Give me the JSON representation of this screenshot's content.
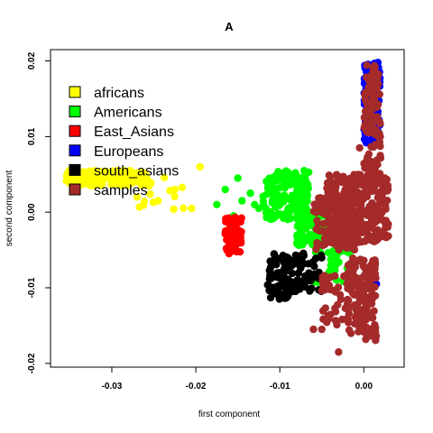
{
  "chart_data": {
    "type": "scatter",
    "title": "A",
    "xlabel": "first component",
    "ylabel": "second component",
    "xlim": [
      -0.0373,
      0.0048
    ],
    "ylim": [
      -0.0205,
      0.0215
    ],
    "x_ticks": [
      -0.03,
      -0.02,
      -0.01,
      0.0
    ],
    "x_tick_labels": [
      "-0.03",
      "-0.02",
      "-0.01",
      "0.00"
    ],
    "y_ticks": [
      -0.02,
      -0.01,
      0.0,
      0.01,
      0.02
    ],
    "y_tick_labels": [
      "-0.02",
      "-0.01",
      "0.00",
      "0.01",
      "0.02"
    ],
    "grid": false,
    "legend_position": "top-left",
    "series": [
      {
        "name": "africans",
        "color": "#FFFF00",
        "clusters": [
          {
            "x": [
              -0.0355,
              -0.0258
            ],
            "y": [
              0.0035,
              0.0055
            ],
            "n": 180
          },
          {
            "x": [
              -0.0268,
              -0.0205
            ],
            "y": [
              0.0,
              0.005
            ],
            "n": 14
          }
        ],
        "points": [
          [
            -0.0195,
            0.006
          ],
          [
            -0.0225,
            0.003
          ],
          [
            -0.0245,
            0.0015
          ],
          [
            -0.0205,
            0.0005
          ],
          [
            -0.0255,
            0.004
          ],
          [
            -0.027,
            0.002
          ]
        ]
      },
      {
        "name": "Americans",
        "color": "#00FF00",
        "clusters": [
          {
            "x": [
              -0.012,
              -0.0065
            ],
            "y": [
              -0.001,
              0.0055
            ],
            "n": 160
          },
          {
            "x": [
              -0.008,
              -0.004
            ],
            "y": [
              -0.0045,
              0.0
            ],
            "n": 90
          },
          {
            "x": [
              -0.006,
              -0.0015
            ],
            "y": [
              -0.0095,
              -0.003
            ],
            "n": 40
          }
        ],
        "points": [
          [
            -0.0125,
            0.0005
          ],
          [
            -0.0135,
            0.0025
          ],
          [
            -0.0145,
            0.0015
          ],
          [
            -0.0155,
            -0.0005
          ],
          [
            -0.0165,
            0.003
          ],
          [
            -0.015,
            0.0045
          ],
          [
            -0.013,
            0.001
          ],
          [
            -0.0175,
            0.001
          ]
        ]
      },
      {
        "name": "East_Asians",
        "color": "#FF0000",
        "clusters": [
          {
            "x": [
              -0.0165,
              -0.0145
            ],
            "y": [
              -0.0055,
              -0.0005
            ],
            "n": 70
          }
        ],
        "points": []
      },
      {
        "name": "Europeans",
        "color": "#0000FF",
        "clusters": [
          {
            "x": [
              0.0,
              0.002
            ],
            "y": [
              0.009,
              0.02
            ],
            "n": 90
          }
        ],
        "points": [
          [
            0.0015,
            -0.0095
          ]
        ]
      },
      {
        "name": "south_asians",
        "color": "#000000",
        "clusters": [
          {
            "x": [
              -0.0115,
              -0.0085
            ],
            "y": [
              -0.0115,
              -0.0055
            ],
            "n": 80
          },
          {
            "x": [
              -0.0085,
              -0.005
            ],
            "y": [
              -0.0105,
              -0.005
            ],
            "n": 60
          }
        ],
        "points": []
      },
      {
        "name": "samples",
        "color": "#A52A2A",
        "clusters": [
          {
            "x": [
              -0.0045,
              0.003
            ],
            "y": [
              -0.004,
              0.005
            ],
            "n": 340
          },
          {
            "x": [
              -0.006,
              -0.001
            ],
            "y": [
              -0.005,
              0.002
            ],
            "n": 120
          },
          {
            "x": [
              -0.002,
              0.0015
            ],
            "y": [
              -0.017,
              -0.006
            ],
            "n": 140
          },
          {
            "x": [
              0.0,
              0.002
            ],
            "y": [
              0.005,
              0.0195
            ],
            "n": 110
          },
          {
            "x": [
              -0.005,
              -0.0015
            ],
            "y": [
              -0.015,
              -0.008
            ],
            "n": 40
          }
        ],
        "points": [
          [
            -0.006,
            -0.0155
          ],
          [
            -0.005,
            -0.0155
          ],
          [
            -0.003,
            -0.0185
          ],
          [
            -0.0005,
            0.0085
          ],
          [
            -0.0005,
            0.0045
          ]
        ]
      }
    ]
  }
}
